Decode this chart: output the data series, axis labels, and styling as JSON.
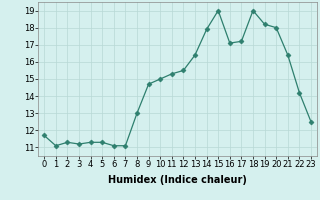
{
  "x": [
    0,
    1,
    2,
    3,
    4,
    5,
    6,
    7,
    8,
    9,
    10,
    11,
    12,
    13,
    14,
    15,
    16,
    17,
    18,
    19,
    20,
    21,
    22,
    23
  ],
  "y": [
    11.7,
    11.1,
    11.3,
    11.2,
    11.3,
    11.3,
    11.1,
    11.1,
    13.0,
    14.7,
    15.0,
    15.3,
    15.5,
    16.4,
    17.9,
    19.0,
    17.1,
    17.2,
    19.0,
    18.2,
    18.0,
    16.4,
    14.2,
    12.5
  ],
  "xlabel": "Humidex (Indice chaleur)",
  "xlim": [
    -0.5,
    23.5
  ],
  "ylim": [
    10.5,
    19.5
  ],
  "yticks": [
    11,
    12,
    13,
    14,
    15,
    16,
    17,
    18,
    19
  ],
  "xticks": [
    0,
    1,
    2,
    3,
    4,
    5,
    6,
    7,
    8,
    9,
    10,
    11,
    12,
    13,
    14,
    15,
    16,
    17,
    18,
    19,
    20,
    21,
    22,
    23
  ],
  "line_color": "#2e7f6e",
  "marker": "D",
  "marker_size": 2.5,
  "bg_color": "#d5f0ee",
  "grid_color": "#b8d8d5",
  "label_fontsize": 7,
  "tick_fontsize": 6
}
